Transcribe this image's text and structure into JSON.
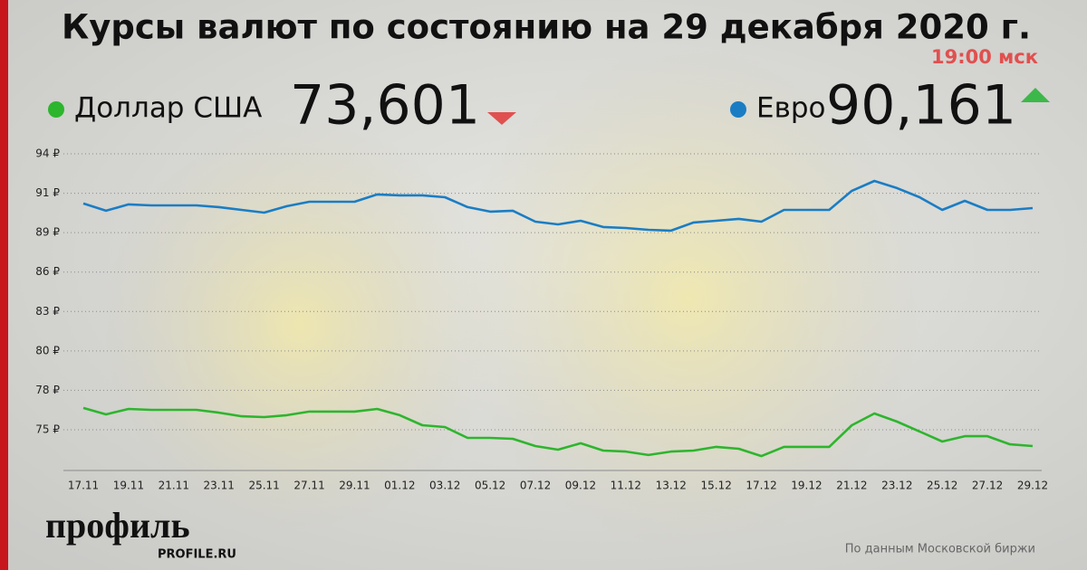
{
  "chart_data": {
    "type": "line",
    "title": "Курсы валют по состоянию на 29 декабря 2020 г.",
    "subtitle": "19:00 мск",
    "source": "По данным Московской биржи",
    "categories": [
      "17.11",
      null,
      "19.11",
      null,
      "21.11",
      null,
      "23.11",
      null,
      "25.11",
      null,
      "27.11",
      null,
      "29.11",
      null,
      "01.12",
      null,
      "03.12",
      null,
      "05.12",
      null,
      "07.12",
      null,
      "09.12",
      null,
      "11.12",
      null,
      "13.12",
      null,
      "15.12",
      null,
      "17.12",
      null,
      "19.12",
      null,
      "21.12",
      null,
      "23.12",
      null,
      "25.12",
      null,
      "27.12",
      null,
      "29.12"
    ],
    "series": [
      {
        "name": "Доллар США",
        "color": "#2db52d",
        "current": "73,601",
        "trend": "down",
        "trend_color": "#e0504f",
        "values": [
          76.5,
          76.06,
          76.43,
          76.37,
          76.37,
          76.37,
          76.18,
          75.93,
          75.87,
          76.0,
          76.25,
          76.25,
          76.25,
          76.43,
          76.0,
          75.31,
          75.19,
          74.44,
          74.44,
          74.38,
          73.88,
          73.63,
          74.07,
          73.57,
          73.5,
          73.26,
          73.5,
          73.57,
          73.82,
          73.69,
          73.19,
          73.82,
          73.82,
          73.82,
          75.31,
          76.12,
          75.56,
          74.88,
          74.19,
          74.56,
          74.56,
          74.0,
          73.88
        ]
      },
      {
        "name": "Евро",
        "color": "#1a7dc4",
        "current": "90,161",
        "trend": "up",
        "trend_color": "#3cb84a",
        "values": [
          90.58,
          90.08,
          90.52,
          90.45,
          90.45,
          90.45,
          90.33,
          90.14,
          89.95,
          90.39,
          90.7,
          90.7,
          90.7,
          91.2,
          91.14,
          91.14,
          91.01,
          90.33,
          90.02,
          90.08,
          89.33,
          89.14,
          89.39,
          88.96,
          88.89,
          88.77,
          88.71,
          89.27,
          89.39,
          89.52,
          89.33,
          90.14,
          90.14,
          90.14,
          91.45,
          92.13,
          91.64,
          91.01,
          90.14,
          90.76,
          90.14,
          90.14,
          90.26
        ]
      }
    ],
    "ylim": [
      72.2,
      94.2
    ],
    "yticks": [
      {
        "value": 94,
        "label": "94 ₽"
      },
      {
        "value": 91.286,
        "label": "91 ₽"
      },
      {
        "value": 88.571,
        "label": "89 ₽"
      },
      {
        "value": 85.857,
        "label": "86 ₽"
      },
      {
        "value": 83.143,
        "label": "83 ₽"
      },
      {
        "value": 80.429,
        "label": "80 ₽"
      },
      {
        "value": 77.714,
        "label": "78 ₽"
      },
      {
        "value": 75,
        "label": "75 ₽"
      }
    ],
    "grid": true
  },
  "logo": {
    "name": "профиль",
    "url": "PROFILE.RU"
  }
}
